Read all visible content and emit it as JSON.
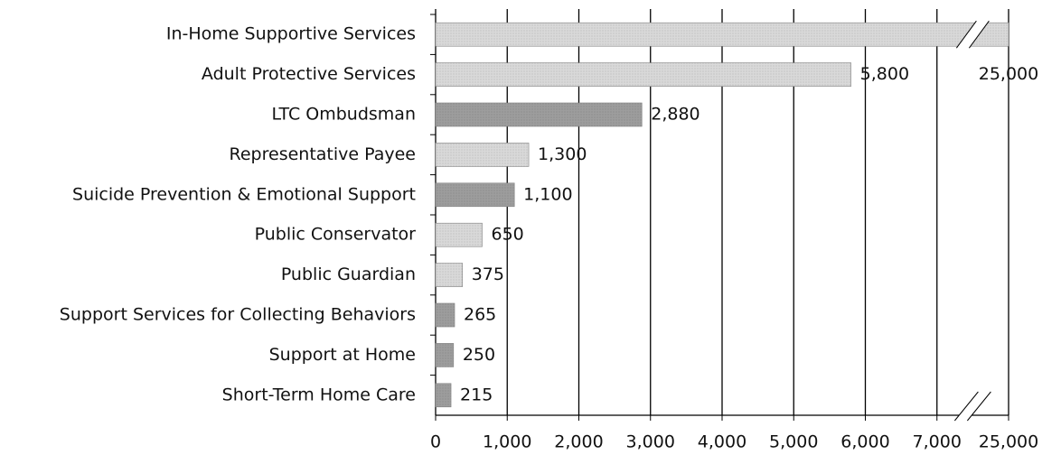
{
  "chart_data": {
    "type": "bar",
    "orientation": "horizontal",
    "categories": [
      "In-Home Supportive Services",
      "Adult Protective Services",
      "LTC Ombudsman",
      "Representative Payee",
      "Suicide Prevention & Emotional Support",
      "Public Conservator",
      "Public Guardian",
      "Support Services for Collecting Behaviors",
      "Support at Home",
      "Short-Term Home Care"
    ],
    "values": [
      25000,
      5800,
      2880,
      1300,
      1100,
      650,
      375,
      265,
      250,
      215
    ],
    "value_labels": [
      "25,000",
      "5,800",
      "2,880",
      "1,300",
      "1,100",
      "650",
      "375",
      "265",
      "250",
      "215"
    ],
    "colors": [
      "#d2d2d2",
      "#d2d2d2",
      "#8c8c8c",
      "#d2d2d2",
      "#8c8c8c",
      "#d2d2d2",
      "#d2d2d2",
      "#8c8c8c",
      "#8c8c8c",
      "#8c8c8c"
    ],
    "xlim": [
      0,
      25000
    ],
    "xbreak": [
      7500,
      24500
    ],
    "xticks": [
      0,
      {
        "value": 1000,
        "label": "1,000"
      },
      {
        "value": 2000,
        "label": "2,000"
      },
      {
        "value": 3000,
        "label": "3,000"
      },
      {
        "value": 4000,
        "label": "4,000"
      },
      {
        "value": 5000,
        "label": "5,000"
      },
      {
        "value": 6000,
        "label": "6,000"
      },
      {
        "value": 7000,
        "label": "7,000"
      },
      {
        "value": 25000,
        "label": "25,000"
      }
    ],
    "grid": true
  }
}
